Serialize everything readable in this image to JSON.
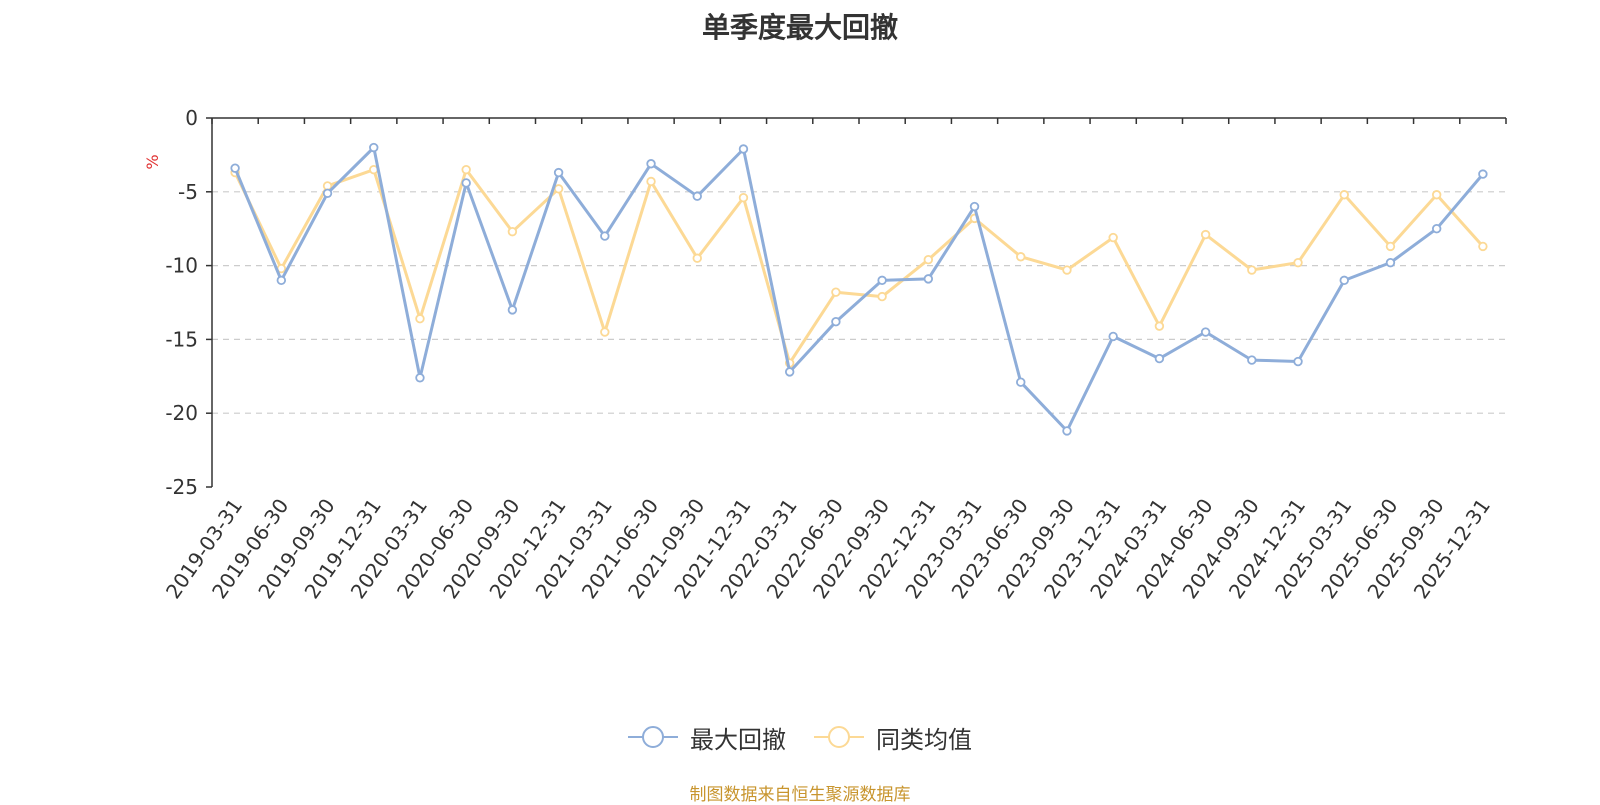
{
  "title": "单季度最大回撤",
  "source": "制图数据来自恒生聚源数据库",
  "colors": {
    "series1": "#8eadd9",
    "series2": "#fcd995",
    "grid": "#cccccc",
    "axis": "#333333"
  },
  "chart_data": {
    "type": "line",
    "title": "单季度最大回撤",
    "ylabel": "%",
    "xlabel": "",
    "ylim": [
      -25,
      0
    ],
    "yticks": [
      0,
      -5,
      -10,
      -15,
      -20,
      -25
    ],
    "grid": true,
    "legend_position": "bottom",
    "categories": [
      "2019-03-31",
      "2019-06-30",
      "2019-09-30",
      "2019-12-31",
      "2020-03-31",
      "2020-06-30",
      "2020-09-30",
      "2020-12-31",
      "2021-03-31",
      "2021-06-30",
      "2021-09-30",
      "2021-12-31",
      "2022-03-31",
      "2022-06-30",
      "2022-09-30",
      "2022-12-31",
      "2023-03-31",
      "2023-06-30",
      "2023-09-30",
      "2023-12-31",
      "2024-03-31",
      "2024-06-30",
      "2024-09-30",
      "2024-12-31",
      "2025-03-31",
      "2025-06-30",
      "2025-09-30",
      "2025-12-31"
    ],
    "series": [
      {
        "name": "最大回撤",
        "values": [
          -3.4,
          -11.0,
          -5.1,
          -2.0,
          -17.6,
          -4.4,
          -13.0,
          -3.7,
          -8.0,
          -3.1,
          -5.3,
          -2.1,
          -17.2,
          -13.8,
          -11.0,
          -10.9,
          -6.0,
          -17.9,
          -21.2,
          -14.8,
          -16.3,
          -14.5,
          -16.4,
          -16.5,
          -11.0,
          -9.8,
          -7.5,
          -3.8
        ]
      },
      {
        "name": "同类均值",
        "values": [
          -3.7,
          -10.2,
          -4.6,
          -3.5,
          -13.6,
          -3.5,
          -7.7,
          -4.8,
          -14.5,
          -4.3,
          -9.5,
          -5.4,
          -16.6,
          -11.8,
          -12.1,
          -9.6,
          -6.8,
          -9.4,
          -10.3,
          -8.1,
          -14.1,
          -7.9,
          -10.3,
          -9.8,
          -5.2,
          -8.7,
          -5.2,
          -8.7
        ]
      }
    ]
  }
}
